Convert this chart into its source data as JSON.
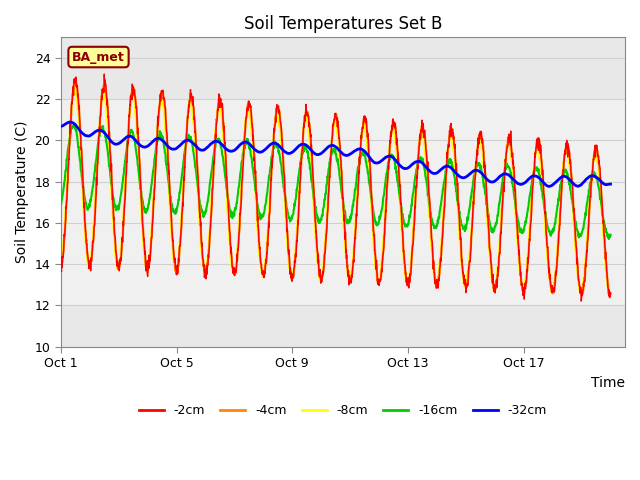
{
  "title": "Soil Temperatures Set B",
  "xlabel": "Time",
  "ylabel": "Soil Temperature (C)",
  "ylim": [
    10,
    25
  ],
  "yticks": [
    10,
    12,
    14,
    16,
    18,
    20,
    22,
    24
  ],
  "xlim_days": [
    0,
    19.5
  ],
  "xtick_positions": [
    0,
    4,
    8,
    12,
    16
  ],
  "xtick_labels": [
    "Oct 1",
    "Oct 5",
    "Oct 9",
    "Oct 13",
    "Oct 17"
  ],
  "colors": {
    "cm2": "#ff0000",
    "cm4": "#ff8800",
    "cm8": "#ffff00",
    "cm16": "#00cc00",
    "cm32": "#0000ff"
  },
  "legend_labels": [
    "-2cm",
    "-4cm",
    "-8cm",
    "-16cm",
    "-32cm"
  ],
  "annotation_text": "BA_met",
  "annotation_color": "#8b0000",
  "annotation_bg": "#ffff99",
  "grid_color": "#d0d0d0",
  "plot_bg": "#e8e8e8",
  "band_bg": "#f0f0f0",
  "title_fontsize": 12,
  "label_fontsize": 10,
  "tick_fontsize": 9
}
